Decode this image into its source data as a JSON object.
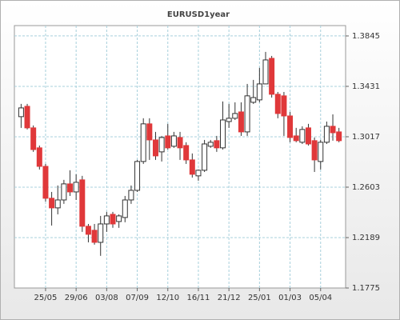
{
  "chart_data": {
    "type": "candlestick",
    "title": "EURUSD1year",
    "categories": [
      null,
      null,
      null,
      null,
      "25/05",
      null,
      null,
      null,
      null,
      "29/06",
      null,
      null,
      null,
      null,
      "03/08",
      null,
      null,
      null,
      null,
      "07/09",
      null,
      null,
      null,
      null,
      "12/10",
      null,
      null,
      null,
      null,
      "16/11",
      null,
      null,
      null,
      null,
      "21/12",
      null,
      null,
      null,
      null,
      "25/01",
      null,
      null,
      null,
      null,
      "01/03",
      null,
      null,
      null,
      null,
      "05/04",
      null,
      null,
      null
    ],
    "open": [
      1.3182,
      1.3267,
      1.309,
      1.2926,
      1.2774,
      1.2512,
      1.2433,
      1.2498,
      1.263,
      1.2564,
      1.2663,
      1.2282,
      1.2249,
      1.215,
      1.2301,
      1.238,
      1.2321,
      1.2354,
      1.2498,
      1.2577,
      1.2814,
      1.3123,
      1.2991,
      1.2893,
      1.3024,
      1.2939,
      1.3011,
      1.2945,
      1.2827,
      1.2696,
      1.2742,
      1.2939,
      1.2985,
      1.2926,
      1.3142,
      1.3169,
      1.3221,
      1.3057,
      1.33,
      1.332,
      1.3451,
      1.3661,
      1.3366,
      1.3353,
      1.3188,
      1.3024,
      1.2972,
      1.309,
      1.2985,
      1.2814,
      1.2972,
      1.3103,
      1.3057
    ],
    "high": [
      1.3287,
      1.3287,
      1.311,
      1.2945,
      1.2794,
      1.2564,
      1.2617,
      1.2663,
      1.2742,
      1.2709,
      1.2696,
      1.2301,
      1.2301,
      1.2367,
      1.24,
      1.24,
      1.238,
      1.2531,
      1.2617,
      1.2827,
      1.3169,
      1.3169,
      1.3057,
      1.3024,
      1.3123,
      1.3057,
      1.3057,
      1.2972,
      1.288,
      1.2748,
      1.2991,
      1.2991,
      1.3024,
      1.3307,
      1.3287,
      1.33,
      1.33,
      1.3451,
      1.3484,
      1.3583,
      1.3714,
      1.3681,
      1.3385,
      1.3385,
      1.3221,
      1.309,
      1.3103,
      1.3123,
      1.3011,
      1.2991,
      1.3142,
      1.3201,
      1.309
    ],
    "low": [
      1.309,
      1.3077,
      1.2893,
      1.2748,
      1.2485,
      1.2288,
      1.238,
      1.2466,
      1.2531,
      1.2498,
      1.2236,
      1.215,
      1.2131,
      1.2039,
      1.2236,
      1.2269,
      1.2269,
      1.2315,
      1.2466,
      1.2564,
      1.2794,
      1.2827,
      1.2827,
      1.2814,
      1.2912,
      1.2926,
      1.2827,
      1.2794,
      1.2682,
      1.2656,
      1.2728,
      1.2926,
      1.2893,
      1.2912,
      1.309,
      1.3155,
      1.3024,
      1.3024,
      1.3287,
      1.33,
      1.3451,
      1.3339,
      1.3169,
      1.3024,
      1.2972,
      1.2972,
      1.2958,
      1.2945,
      1.2728,
      1.2748,
      1.2958,
      1.2985,
      1.2972
    ],
    "close": [
      1.3254,
      1.309,
      1.2912,
      1.2774,
      1.2512,
      1.2433,
      1.2498,
      1.263,
      1.2564,
      1.2643,
      1.2282,
      1.2216,
      1.215,
      1.2301,
      1.2367,
      1.2301,
      1.2367,
      1.2498,
      1.2577,
      1.2814,
      1.3123,
      1.2991,
      1.286,
      1.3011,
      1.2926,
      1.3024,
      1.2926,
      1.2827,
      1.2709,
      1.2742,
      1.2958,
      1.2972,
      1.2926,
      1.3155,
      1.3169,
      1.3208,
      1.3057,
      1.3353,
      1.3339,
      1.3451,
      1.3648,
      1.3366,
      1.3208,
      1.3188,
      1.3011,
      1.2985,
      1.3077,
      1.2958,
      1.2827,
      1.2972,
      1.3103,
      1.305,
      1.2985
    ],
    "up_color": "#ffffff",
    "down_color": "#e0383a",
    "ylim": [
      1.1775,
      1.393
    ],
    "yticks": [
      1.1775,
      1.2189,
      1.2603,
      1.3017,
      1.3431,
      1.3845
    ],
    "grid": true
  }
}
